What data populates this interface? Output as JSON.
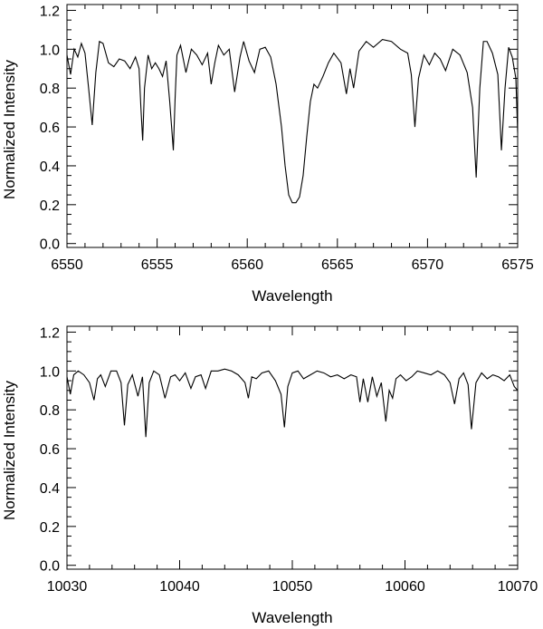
{
  "chart_data": [
    {
      "type": "line",
      "xlabel": "Wavelength",
      "ylabel": "Normalized Intensity",
      "xlim": [
        6550,
        6575
      ],
      "ylim": [
        -0.02,
        1.23
      ],
      "xticks": [
        6550,
        6555,
        6560,
        6565,
        6570,
        6575
      ],
      "xtick_labels": [
        "6550",
        "6555",
        "6560",
        "6565",
        "6570",
        "6575"
      ],
      "yticks": [
        0.0,
        0.2,
        0.4,
        0.6,
        0.8,
        1.0,
        1.2
      ],
      "ytick_labels": [
        "0.0",
        "0.2",
        "0.4",
        "0.6",
        "0.8",
        "1.0",
        "1.2"
      ],
      "grid": false,
      "series": [
        {
          "x": [
            6550.0,
            6550.2,
            6550.4,
            6550.6,
            6550.8,
            6551.0,
            6551.2,
            6551.4,
            6551.6,
            6551.8,
            6552.0,
            6552.3,
            6552.6,
            6552.9,
            6553.2,
            6553.5,
            6553.8,
            6554.0,
            6554.1,
            6554.2,
            6554.3,
            6554.5,
            6554.7,
            6554.9,
            6555.1,
            6555.3,
            6555.5,
            6555.7,
            6555.9,
            6556.0,
            6556.1,
            6556.3,
            6556.6,
            6556.9,
            6557.2,
            6557.5,
            6557.8,
            6558.0,
            6558.2,
            6558.4,
            6558.7,
            6559.0,
            6559.3,
            6559.6,
            6559.8,
            6560.1,
            6560.4,
            6560.7,
            6561.0,
            6561.3,
            6561.6,
            6561.9,
            6562.1,
            6562.3,
            6562.5,
            6562.7,
            6562.9,
            6563.1,
            6563.3,
            6563.5,
            6563.7,
            6563.9,
            6564.2,
            6564.5,
            6564.8,
            6565.2,
            6565.5,
            6565.7,
            6565.9,
            6566.2,
            6566.6,
            6567.0,
            6567.5,
            6568.0,
            6568.5,
            6568.9,
            6569.1,
            6569.3,
            6569.5,
            6569.8,
            6570.1,
            6570.4,
            6570.7,
            6571.0,
            6571.4,
            6571.8,
            6572.2,
            6572.5,
            6572.7,
            6572.9,
            6573.1,
            6573.3,
            6573.6,
            6573.9,
            6574.1,
            6574.3,
            6574.5,
            6574.7,
            6574.9,
            6575.0
          ],
          "y": [
            0.97,
            0.87,
            1.0,
            0.96,
            1.03,
            0.98,
            0.8,
            0.61,
            0.88,
            1.04,
            1.03,
            0.93,
            0.91,
            0.95,
            0.94,
            0.9,
            0.96,
            0.9,
            0.7,
            0.53,
            0.8,
            0.97,
            0.9,
            0.93,
            0.9,
            0.86,
            0.94,
            0.73,
            0.48,
            0.75,
            0.97,
            1.02,
            0.88,
            1.0,
            0.97,
            0.92,
            0.98,
            0.82,
            0.93,
            1.02,
            0.97,
            1.0,
            0.78,
            0.96,
            1.04,
            0.94,
            0.88,
            1.0,
            1.01,
            0.96,
            0.82,
            0.6,
            0.4,
            0.25,
            0.21,
            0.21,
            0.24,
            0.35,
            0.55,
            0.73,
            0.82,
            0.8,
            0.86,
            0.93,
            0.98,
            0.93,
            0.77,
            0.9,
            0.8,
            0.99,
            1.04,
            1.01,
            1.05,
            1.04,
            1.0,
            0.98,
            0.87,
            0.6,
            0.85,
            0.97,
            0.92,
            0.98,
            0.95,
            0.89,
            1.0,
            0.97,
            0.88,
            0.7,
            0.34,
            0.8,
            1.04,
            1.04,
            0.98,
            0.87,
            0.48,
            0.8,
            1.01,
            0.96,
            0.85,
            0.57
          ]
        }
      ]
    },
    {
      "type": "line",
      "xlabel": "Wavelength",
      "ylabel": "Normalized Intensity",
      "xlim": [
        10030,
        10070
      ],
      "ylim": [
        -0.02,
        1.23
      ],
      "xticks": [
        10030,
        10040,
        10050,
        10060,
        10070
      ],
      "xtick_labels": [
        "10030",
        "10040",
        "10050",
        "10060",
        "10070"
      ],
      "yticks": [
        0.0,
        0.2,
        0.4,
        0.6,
        0.8,
        1.0,
        1.2
      ],
      "ytick_labels": [
        "0.0",
        "0.2",
        "0.4",
        "0.6",
        "0.8",
        "1.0",
        "1.2"
      ],
      "grid": false,
      "series": [
        {
          "x": [
            10030.0,
            10030.3,
            10030.6,
            10031.0,
            10031.5,
            10032.0,
            10032.4,
            10032.7,
            10033.0,
            10033.4,
            10033.9,
            10034.4,
            10034.8,
            10035.1,
            10035.4,
            10035.8,
            10036.3,
            10036.7,
            10037.0,
            10037.3,
            10037.7,
            10038.2,
            10038.7,
            10039.2,
            10039.6,
            10040.0,
            10040.5,
            10041.0,
            10041.4,
            10041.9,
            10042.3,
            10042.8,
            10043.4,
            10044.0,
            10044.6,
            10045.2,
            10045.8,
            10046.1,
            10046.4,
            10046.8,
            10047.3,
            10047.9,
            10048.5,
            10049.0,
            10049.3,
            10049.6,
            10050.0,
            10050.5,
            10051.0,
            10051.6,
            10052.2,
            10052.8,
            10053.4,
            10054.0,
            10054.6,
            10055.2,
            10055.7,
            10056.0,
            10056.3,
            10056.7,
            10057.1,
            10057.5,
            10057.9,
            10058.3,
            10058.6,
            10058.9,
            10059.2,
            10059.6,
            10060.1,
            10060.6,
            10061.1,
            10061.7,
            10062.3,
            10062.9,
            10063.5,
            10064.0,
            10064.4,
            10064.8,
            10065.2,
            10065.6,
            10065.9,
            10066.3,
            10066.8,
            10067.3,
            10067.8,
            10068.3,
            10068.8,
            10069.3,
            10069.7,
            10070.0
          ],
          "y": [
            0.97,
            0.88,
            0.98,
            1.0,
            0.98,
            0.94,
            0.85,
            0.96,
            0.98,
            0.92,
            1.0,
            1.0,
            0.94,
            0.72,
            0.93,
            0.98,
            0.87,
            0.97,
            0.66,
            0.94,
            1.0,
            0.98,
            0.86,
            0.97,
            0.98,
            0.95,
            0.99,
            0.91,
            0.97,
            0.98,
            0.91,
            1.0,
            1.0,
            1.01,
            1.0,
            0.98,
            0.94,
            0.86,
            0.97,
            0.96,
            0.99,
            1.0,
            0.95,
            0.88,
            0.71,
            0.92,
            0.99,
            1.0,
            0.96,
            0.98,
            1.0,
            0.99,
            0.97,
            0.98,
            0.96,
            0.98,
            0.97,
            0.84,
            0.96,
            0.84,
            0.97,
            0.87,
            0.94,
            0.74,
            0.9,
            0.86,
            0.96,
            0.98,
            0.95,
            0.97,
            1.0,
            0.99,
            0.98,
            1.0,
            0.98,
            0.94,
            0.83,
            0.96,
            0.99,
            0.93,
            0.7,
            0.94,
            0.99,
            0.96,
            0.98,
            0.97,
            0.95,
            0.98,
            0.92,
            0.9
          ]
        }
      ]
    }
  ]
}
